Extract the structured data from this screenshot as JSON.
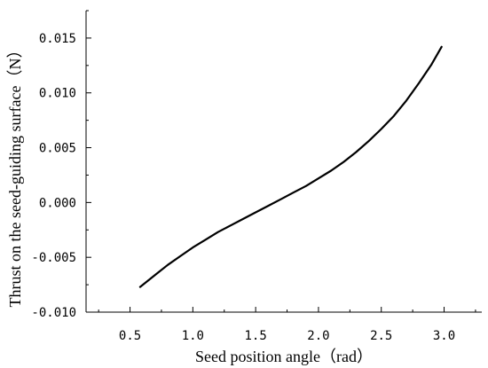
{
  "chart_data": {
    "type": "line",
    "title": "",
    "xlabel": "Seed position angle（rad）",
    "ylabel": "Thrust on the seed-guiding surface（N）",
    "xlim": [
      0.15,
      3.3
    ],
    "ylim": [
      -0.01,
      0.0175
    ],
    "xticks": [
      0.5,
      1.0,
      1.5,
      2.0,
      2.5,
      3.0
    ],
    "xtick_labels": [
      "0.5",
      "1.0",
      "1.5",
      "2.0",
      "2.5",
      "3.0"
    ],
    "yticks": [
      -0.01,
      -0.005,
      0.0,
      0.005,
      0.01,
      0.015
    ],
    "ytick_labels": [
      "-0.010",
      "-0.005",
      "0.000",
      "0.005",
      "0.010",
      "0.015"
    ],
    "grid": false,
    "series": [
      {
        "x": [
          0.58,
          0.7,
          0.8,
          0.9,
          1.0,
          1.1,
          1.2,
          1.3,
          1.4,
          1.5,
          1.6,
          1.7,
          1.8,
          1.9,
          2.0,
          2.1,
          2.2,
          2.3,
          2.4,
          2.5,
          2.6,
          2.7,
          2.8,
          2.9,
          2.98
        ],
        "y": [
          -0.0077,
          -0.0066,
          -0.0057,
          -0.0049,
          -0.0041,
          -0.0034,
          -0.0027,
          -0.0021,
          -0.0015,
          -0.0009,
          -0.0003,
          0.0003,
          0.0009,
          0.0015,
          0.0022,
          0.0029,
          0.0037,
          0.0046,
          0.0056,
          0.0067,
          0.0079,
          0.0093,
          0.0109,
          0.0126,
          0.0142
        ],
        "color": "#000000"
      }
    ]
  }
}
